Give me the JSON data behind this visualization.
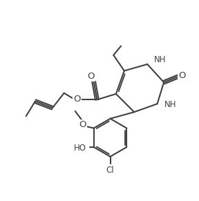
{
  "bg_color": "#ffffff",
  "line_color": "#404040",
  "line_width": 1.5,
  "font_size": 8.5,
  "figsize": [
    2.88,
    2.91
  ],
  "dpi": 100,
  "xlim": [
    -1,
    11
  ],
  "ylim": [
    -1,
    11
  ]
}
